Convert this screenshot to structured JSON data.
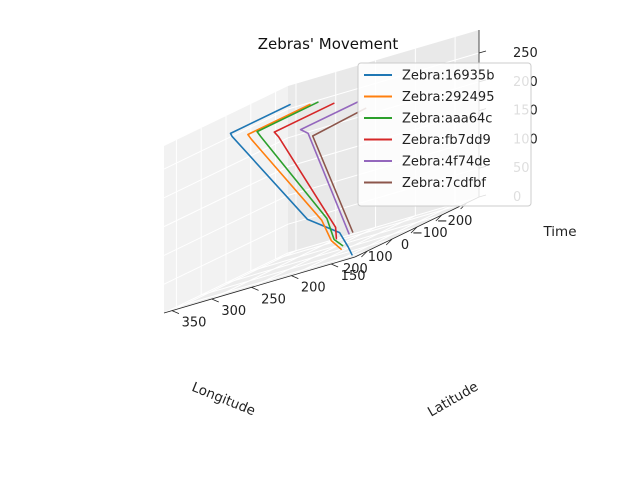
{
  "chart_data": {
    "type": "line",
    "projection": "3d",
    "title": "Zebras' Movement",
    "xlabel": "Longitude",
    "ylabel": "Latitude",
    "zlabel": "Time",
    "xlim": [
      -250,
      250
    ],
    "ylim": [
      120,
      360
    ],
    "zlim": [
      0,
      290
    ],
    "xticks": [
      "−200",
      "−100",
      "0",
      "100",
      "200"
    ],
    "yticks": [
      "150",
      "200",
      "250",
      "300",
      "350"
    ],
    "zticks": [
      "0",
      "50",
      "100",
      "150",
      "200",
      "250"
    ],
    "grid": true,
    "legend_position": "top-right",
    "series": [
      {
        "name": "Zebra:16935b",
        "color": "#1f77b4",
        "x": [
          -210,
          30,
          40,
          250,
          248,
          245,
          246
        ],
        "y": [
          345,
          345,
          340,
          180,
          140,
          130,
          125
        ],
        "z": [
          260,
          260,
          255,
          90,
          50,
          20,
          5
        ]
      },
      {
        "name": "Zebra:292495",
        "color": "#ff7f0e",
        "x": [
          -210,
          40,
          42,
          240,
          243,
          242
        ],
        "y": [
          320,
          320,
          315,
          165,
          152,
          140
        ],
        "z": [
          250,
          250,
          240,
          80,
          40,
          20
        ]
      },
      {
        "name": "Zebra:aaa64c",
        "color": "#2ca02c",
        "x": [
          -210,
          35,
          37,
          235,
          238,
          236
        ],
        "y": [
          310,
          310,
          305,
          160,
          150,
          140
        ],
        "z": [
          250,
          250,
          240,
          80,
          40,
          25
        ]
      },
      {
        "name": "Zebra:fb7dd9",
        "color": "#d62728",
        "x": [
          -210,
          30,
          35,
          232,
          235
        ],
        "y": [
          290,
          290,
          283,
          150,
          148
        ],
        "z": [
          240,
          240,
          230,
          60,
          40
        ]
      },
      {
        "name": "Zebra:4f74de",
        "color": "#9467bd",
        "x": [
          -210,
          20,
          22,
          210
        ],
        "y": [
          260,
          260,
          250,
          140
        ],
        "z": [
          230,
          230,
          220,
          40
        ]
      },
      {
        "name": "Zebra:7cdfbf",
        "color": "#8c564b",
        "x": [
          -210,
          10,
          195
        ],
        "y": [
          250,
          248,
          140
        ],
        "z": [
          215,
          212,
          40
        ]
      }
    ]
  }
}
